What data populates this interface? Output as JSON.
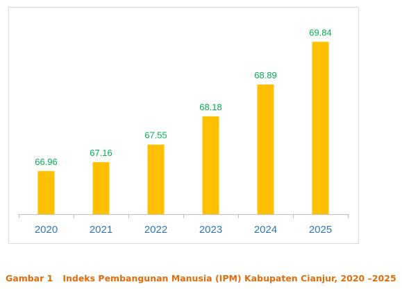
{
  "chart_data": {
    "type": "bar",
    "categories": [
      "2020",
      "2021",
      "2022",
      "2023",
      "2024",
      "2025"
    ],
    "values": [
      66.96,
      67.16,
      67.55,
      68.18,
      68.89,
      69.84
    ],
    "data_labels": [
      "66.96",
      "67.16",
      "67.55",
      "68.18",
      "68.89",
      "69.84"
    ],
    "ylim": [
      66.0,
      70.0
    ],
    "grid": false,
    "legend": "none",
    "bar_color": "#ffc000",
    "label_color": "#00b050",
    "tick_color": "#2e75b6",
    "axis_color": "#bfbfbf"
  },
  "caption": {
    "number": "Gambar 1",
    "text": "Indeks Pembangunan Manusia (IPM) Kabupaten Cianjur, 2020 –2025",
    "color": "#e36c0a"
  }
}
